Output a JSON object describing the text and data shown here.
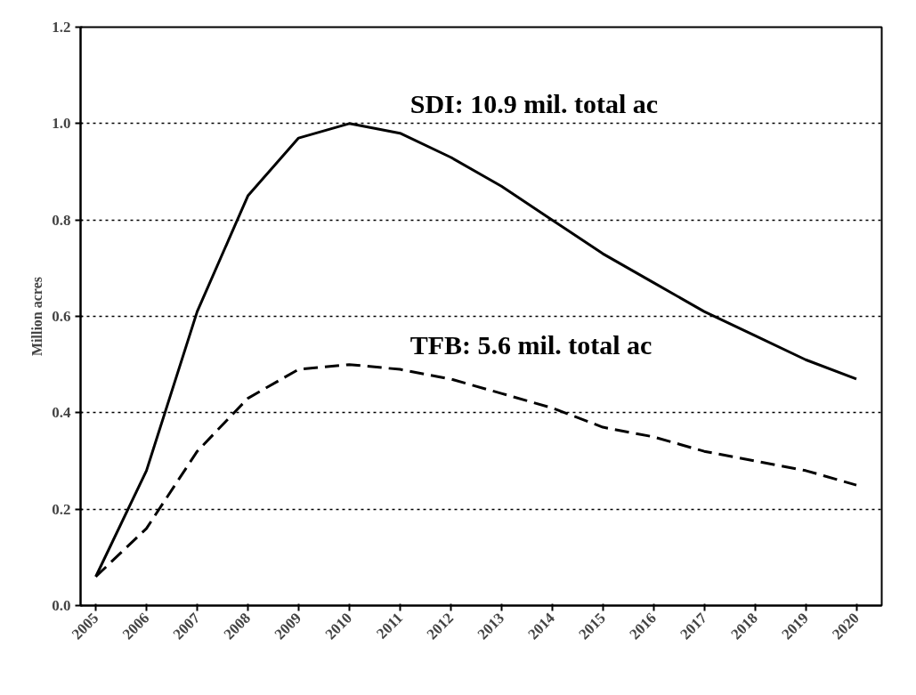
{
  "chart_data": {
    "type": "line",
    "ylabel": "Million acres",
    "categories": [
      "2005",
      "2006",
      "2007",
      "2008",
      "2009",
      "2010",
      "2011",
      "2012",
      "2013",
      "2014",
      "2015",
      "2016",
      "2017",
      "2018",
      "2019",
      "2020"
    ],
    "series": [
      {
        "name": "SDI: 10.9 mil. total ac",
        "color": "#000000",
        "line_style": "solid",
        "values": [
          0.06,
          0.28,
          0.61,
          0.85,
          0.97,
          1.0,
          0.98,
          0.93,
          0.87,
          0.8,
          0.73,
          0.67,
          0.61,
          0.56,
          0.51,
          0.47
        ]
      },
      {
        "name": "TFB: 5.6 mil. total ac",
        "color": "#000000",
        "line_style": "dashed",
        "values": [
          0.06,
          0.16,
          0.32,
          0.43,
          0.49,
          0.5,
          0.49,
          0.47,
          0.44,
          0.41,
          0.37,
          0.35,
          0.32,
          0.3,
          0.28,
          0.25
        ]
      }
    ],
    "ylim": [
      0,
      1.2
    ],
    "yticks": [
      {
        "value": 0,
        "label": "0.0"
      },
      {
        "value": 0.2,
        "label": "0.2"
      },
      {
        "value": 0.4,
        "label": "0.4"
      },
      {
        "value": 0.6,
        "label": "0.6"
      },
      {
        "value": 0.8,
        "label": "0.8"
      },
      {
        "value": 1.0,
        "label": "1.0"
      },
      {
        "value": 1.2,
        "label": "1.2"
      }
    ],
    "grid": "y",
    "marker": "none"
  }
}
